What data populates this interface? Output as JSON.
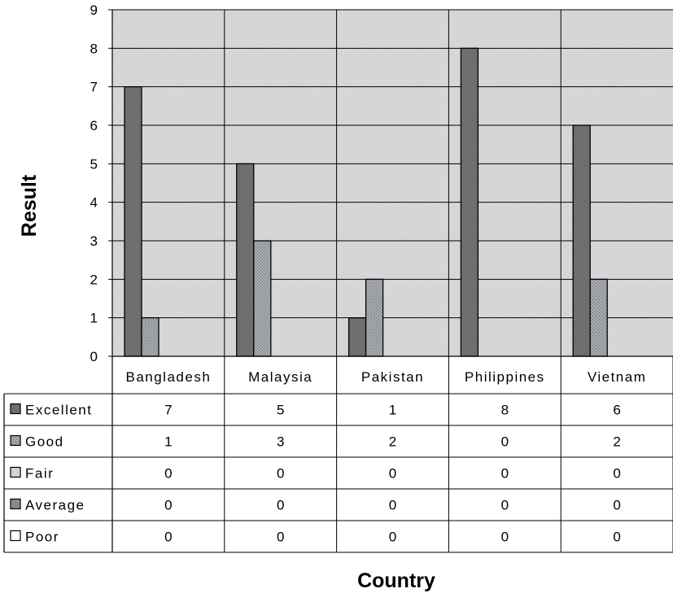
{
  "chart_data": {
    "type": "bar",
    "categories": [
      "Bangladesh",
      "Malaysia",
      "Pakistan",
      "Philippines",
      "Vietnam"
    ],
    "series": [
      {
        "name": "Excellent",
        "values": [
          7,
          5,
          1,
          8,
          6
        ]
      },
      {
        "name": "Good",
        "values": [
          1,
          3,
          2,
          0,
          2
        ]
      },
      {
        "name": "Fair",
        "values": [
          0,
          0,
          0,
          0,
          0
        ]
      },
      {
        "name": "Average",
        "values": [
          0,
          0,
          0,
          0,
          0
        ]
      },
      {
        "name": "Poor",
        "values": [
          0,
          0,
          0,
          0,
          0
        ]
      }
    ],
    "xlabel": "Country",
    "ylabel": "Result",
    "ylim": [
      0,
      9
    ],
    "yticks": [
      0,
      1,
      2,
      3,
      4,
      5,
      6,
      7,
      8,
      9
    ],
    "grid": true,
    "legend": "data-table-left",
    "colors": {
      "Excellent": "#6e6e6e",
      "Good": "#9ea1a6",
      "Fair": "#d2d4d8",
      "Average": "#8a8a8a",
      "Poor": "#ffffff",
      "plot_background": "#dcdcdc"
    }
  }
}
